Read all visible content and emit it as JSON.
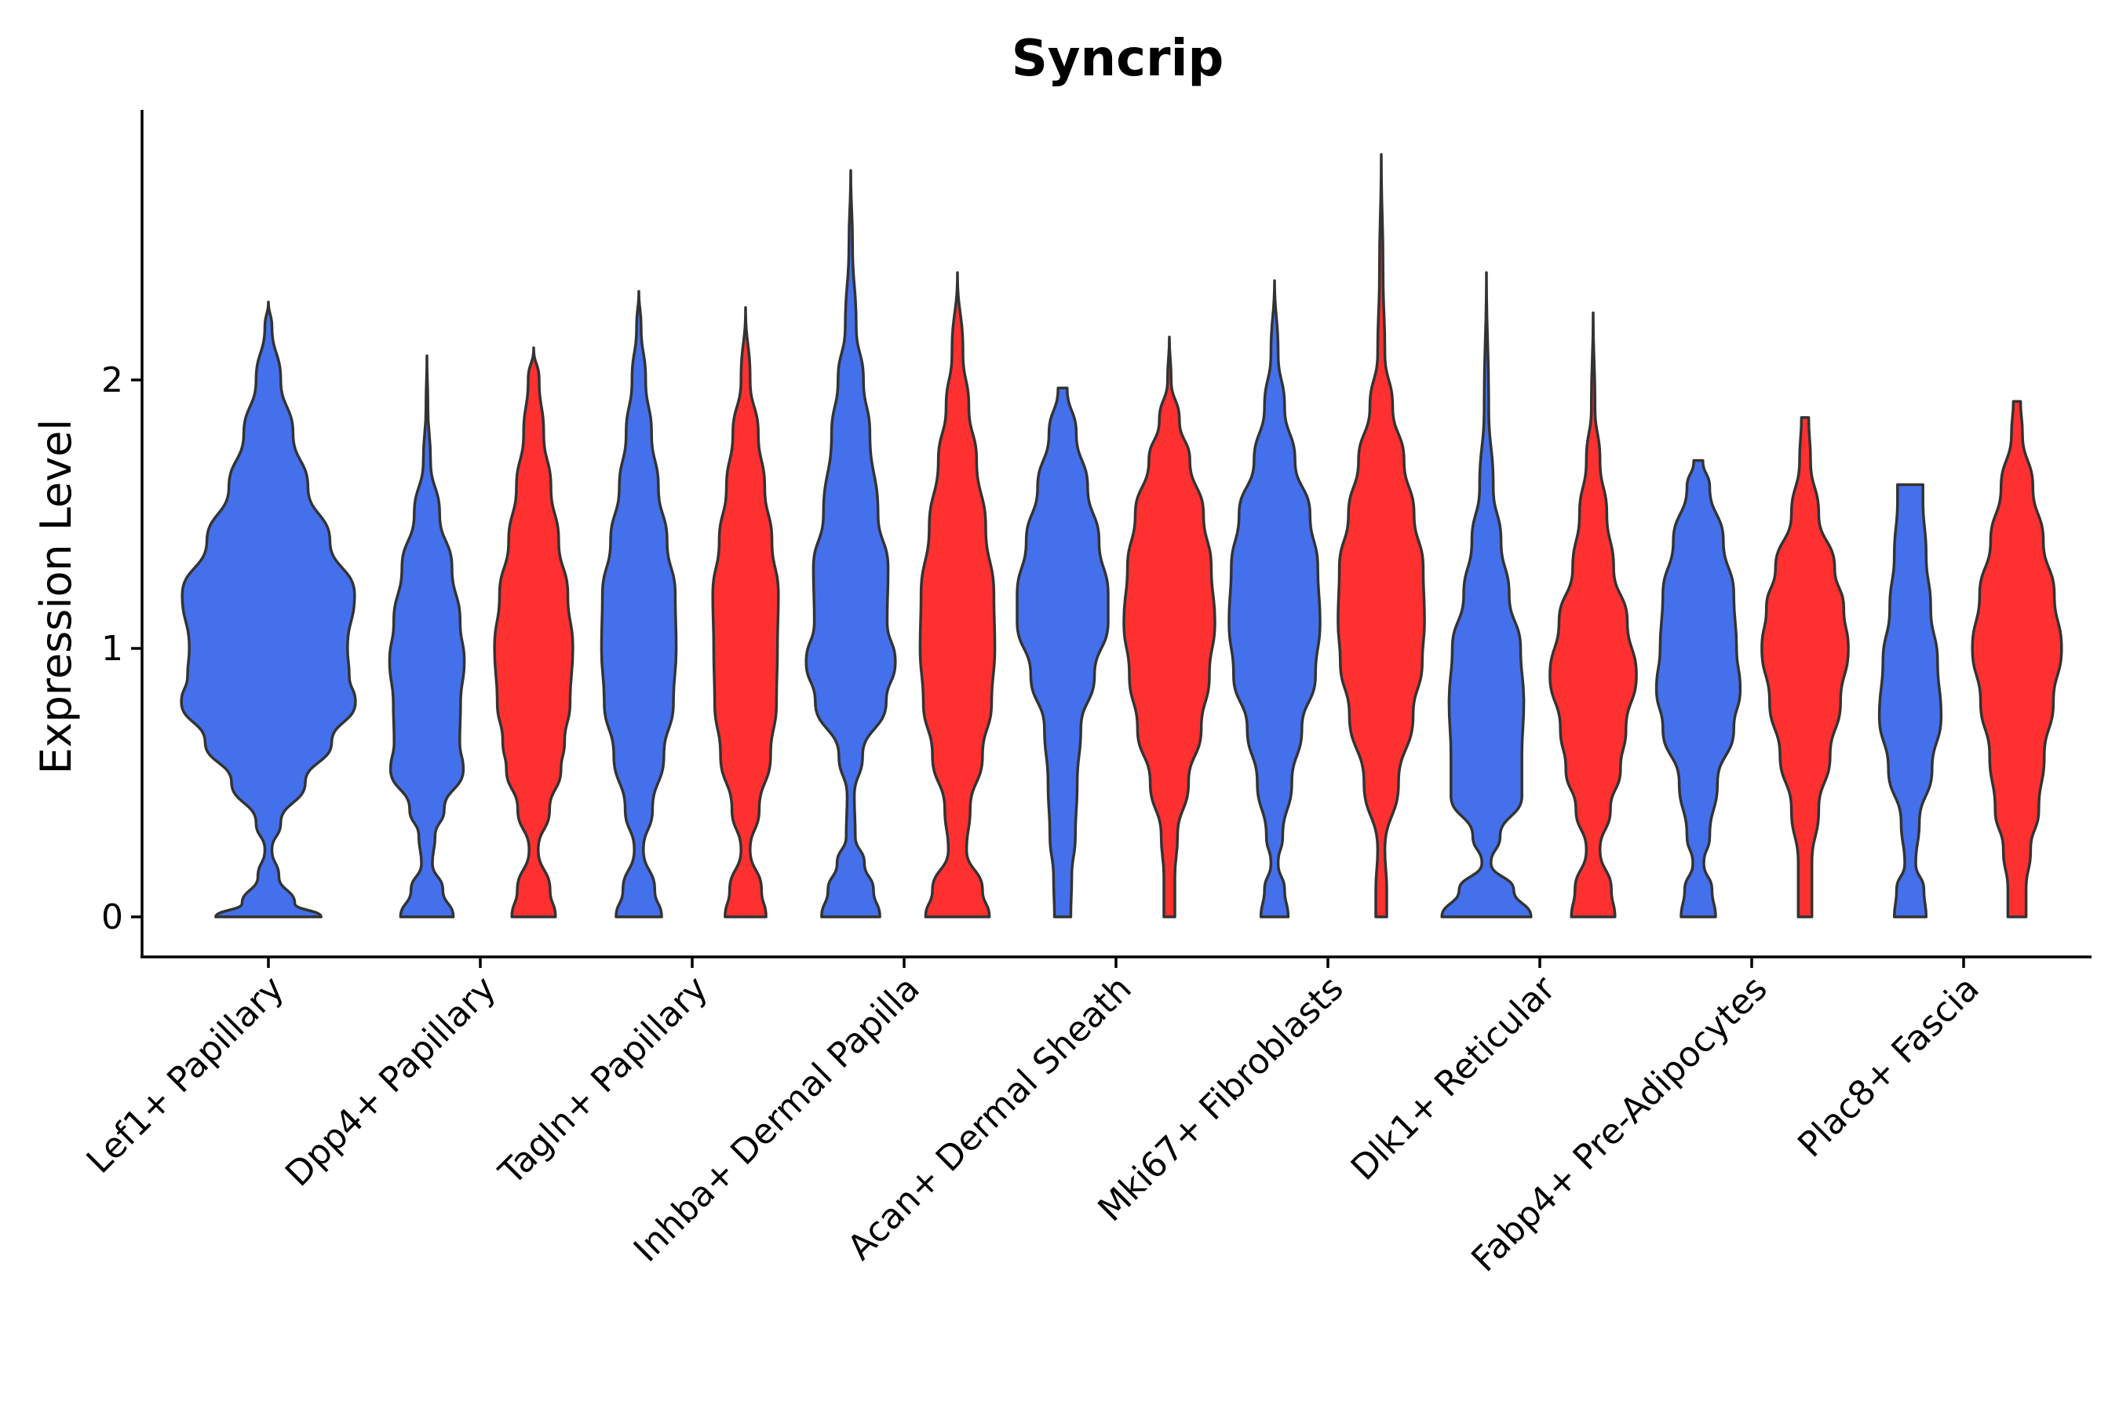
{
  "chart_data": {
    "type": "violin",
    "title": "Syncrip",
    "xlabel": "",
    "ylabel": "Expression Level",
    "ylim": [
      -0.15,
      2.98
    ],
    "yticks": [
      0,
      1,
      2
    ],
    "grid": false,
    "colors": {
      "blue": "#4570EB",
      "red": "#FF3030"
    },
    "categories": [
      "Lef1+ Papillary",
      "Dpp4+ Papillary",
      "Tagln+ Papillary",
      "Inhba+ Dermal Papilla",
      "Acan+ Dermal Sheath",
      "Mki67+ Fibroblasts",
      "Dlk1+ Reticular",
      "Fabp4+ Pre-Adipocytes",
      "Plac8+ Fascia"
    ],
    "series": [
      {
        "color": "blue",
        "violins": [
          {
            "category": "Lef1+ Papillary",
            "profile": [
              [
                0,
                0.6
              ],
              [
                0.05,
                0.3
              ],
              [
                0.15,
                0.12
              ],
              [
                0.25,
                0.04
              ],
              [
                0.35,
                0.14
              ],
              [
                0.5,
                0.42
              ],
              [
                0.65,
                0.72
              ],
              [
                0.8,
                0.99
              ],
              [
                0.9,
                0.92
              ],
              [
                1,
                0.9
              ],
              [
                1.2,
                0.98
              ],
              [
                1.4,
                0.7
              ],
              [
                1.6,
                0.45
              ],
              [
                1.8,
                0.28
              ],
              [
                2,
                0.14
              ],
              [
                2.2,
                0.04
              ],
              [
                2.29,
                0
              ]
            ]
          },
          {
            "category": "Dpp4+ Papillary",
            "profile": [
              [
                0,
                0.58
              ],
              [
                0.1,
                0.35
              ],
              [
                0.2,
                0.12
              ],
              [
                0.3,
                0.18
              ],
              [
                0.4,
                0.38
              ],
              [
                0.55,
                0.8
              ],
              [
                0.65,
                0.72
              ],
              [
                0.8,
                0.74
              ],
              [
                0.95,
                0.82
              ],
              [
                1.1,
                0.73
              ],
              [
                1.3,
                0.55
              ],
              [
                1.5,
                0.28
              ],
              [
                1.7,
                0.08
              ],
              [
                1.9,
                0.02
              ],
              [
                2.09,
                0
              ]
            ]
          },
          {
            "category": "Tagln+ Papillary",
            "profile": [
              [
                0,
                0.5
              ],
              [
                0.1,
                0.35
              ],
              [
                0.25,
                0.1
              ],
              [
                0.4,
                0.3
              ],
              [
                0.6,
                0.55
              ],
              [
                0.8,
                0.76
              ],
              [
                1,
                0.82
              ],
              [
                1.2,
                0.8
              ],
              [
                1.4,
                0.62
              ],
              [
                1.6,
                0.43
              ],
              [
                1.8,
                0.28
              ],
              [
                2,
                0.15
              ],
              [
                2.2,
                0.05
              ],
              [
                2.33,
                0
              ]
            ]
          },
          {
            "category": "Inhba+ Dermal Papilla",
            "profile": [
              [
                0,
                0.64
              ],
              [
                0.1,
                0.5
              ],
              [
                0.2,
                0.3
              ],
              [
                0.3,
                0.1
              ],
              [
                0.45,
                0.08
              ],
              [
                0.6,
                0.26
              ],
              [
                0.8,
                0.78
              ],
              [
                0.95,
                0.98
              ],
              [
                1.1,
                0.8
              ],
              [
                1.3,
                0.82
              ],
              [
                1.5,
                0.6
              ],
              [
                1.8,
                0.42
              ],
              [
                2.0,
                0.28
              ],
              [
                2.2,
                0.12
              ],
              [
                2.5,
                0.04
              ],
              [
                2.78,
                0
              ]
            ]
          },
          {
            "category": "Acan+ Dermal Sheath",
            "profile": [
              [
                0,
                0.18
              ],
              [
                0.15,
                0.2
              ],
              [
                0.3,
                0.28
              ],
              [
                0.5,
                0.32
              ],
              [
                0.7,
                0.4
              ],
              [
                0.9,
                0.7
              ],
              [
                1.1,
                1.0
              ],
              [
                1.2,
                1.0
              ],
              [
                1.4,
                0.8
              ],
              [
                1.6,
                0.55
              ],
              [
                1.8,
                0.3
              ],
              [
                1.97,
                0.1
              ]
            ]
          },
          {
            "category": "Mki67+ Fibroblasts",
            "profile": [
              [
                0,
                0.3
              ],
              [
                0.1,
                0.22
              ],
              [
                0.2,
                0.08
              ],
              [
                0.3,
                0.18
              ],
              [
                0.5,
                0.38
              ],
              [
                0.7,
                0.6
              ],
              [
                0.9,
                0.9
              ],
              [
                1.1,
                1.0
              ],
              [
                1.3,
                0.95
              ],
              [
                1.5,
                0.78
              ],
              [
                1.7,
                0.45
              ],
              [
                1.9,
                0.22
              ],
              [
                2.1,
                0.08
              ],
              [
                2.37,
                0
              ]
            ]
          },
          {
            "category": "Dlk1+ Reticular",
            "profile": [
              [
                0,
                0.98
              ],
              [
                0.1,
                0.6
              ],
              [
                0.2,
                0.1
              ],
              [
                0.3,
                0.3
              ],
              [
                0.45,
                0.78
              ],
              [
                0.6,
                0.78
              ],
              [
                0.8,
                0.82
              ],
              [
                1.0,
                0.75
              ],
              [
                1.2,
                0.5
              ],
              [
                1.4,
                0.32
              ],
              [
                1.6,
                0.15
              ],
              [
                1.9,
                0.05
              ],
              [
                2.4,
                0
              ]
            ]
          },
          {
            "category": "Fabp4+ Pre-Adipocytes",
            "profile": [
              [
                0,
                0.38
              ],
              [
                0.1,
                0.3
              ],
              [
                0.2,
                0.12
              ],
              [
                0.3,
                0.25
              ],
              [
                0.5,
                0.42
              ],
              [
                0.7,
                0.78
              ],
              [
                0.85,
                0.92
              ],
              [
                1.0,
                0.84
              ],
              [
                1.2,
                0.78
              ],
              [
                1.4,
                0.55
              ],
              [
                1.6,
                0.25
              ],
              [
                1.7,
                0.1
              ]
            ]
          },
          {
            "category": "Plac8+ Fascia",
            "profile": [
              [
                0,
                0.35
              ],
              [
                0.1,
                0.3
              ],
              [
                0.2,
                0.12
              ],
              [
                0.35,
                0.2
              ],
              [
                0.55,
                0.48
              ],
              [
                0.75,
                0.68
              ],
              [
                0.95,
                0.6
              ],
              [
                1.15,
                0.45
              ],
              [
                1.35,
                0.35
              ],
              [
                1.55,
                0.28
              ],
              [
                1.61,
                0.28
              ]
            ]
          }
        ]
      },
      {
        "color": "red",
        "violins": [
          {
            "category": "Dpp4+ Papillary",
            "profile": [
              [
                0,
                0.48
              ],
              [
                0.1,
                0.36
              ],
              [
                0.25,
                0.1
              ],
              [
                0.4,
                0.35
              ],
              [
                0.55,
                0.6
              ],
              [
                0.65,
                0.68
              ],
              [
                0.8,
                0.8
              ],
              [
                1,
                0.86
              ],
              [
                1.2,
                0.75
              ],
              [
                1.4,
                0.55
              ],
              [
                1.6,
                0.38
              ],
              [
                1.8,
                0.22
              ],
              [
                2,
                0.12
              ],
              [
                2.12,
                0
              ]
            ]
          },
          {
            "category": "Tagln+ Papillary",
            "profile": [
              [
                0,
                0.45
              ],
              [
                0.1,
                0.35
              ],
              [
                0.25,
                0.1
              ],
              [
                0.4,
                0.3
              ],
              [
                0.6,
                0.55
              ],
              [
                0.8,
                0.68
              ],
              [
                1,
                0.7
              ],
              [
                1.2,
                0.72
              ],
              [
                1.4,
                0.58
              ],
              [
                1.6,
                0.42
              ],
              [
                1.8,
                0.28
              ],
              [
                2,
                0.1
              ],
              [
                2.27,
                0
              ]
            ]
          },
          {
            "category": "Inhba+ Dermal Papilla",
            "profile": [
              [
                0,
                0.7
              ],
              [
                0.1,
                0.55
              ],
              [
                0.25,
                0.2
              ],
              [
                0.4,
                0.28
              ],
              [
                0.6,
                0.55
              ],
              [
                0.8,
                0.75
              ],
              [
                1,
                0.82
              ],
              [
                1.2,
                0.8
              ],
              [
                1.45,
                0.62
              ],
              [
                1.7,
                0.42
              ],
              [
                1.9,
                0.25
              ],
              [
                2.1,
                0.12
              ],
              [
                2.4,
                0
              ]
            ]
          },
          {
            "category": "Acan+ Dermal Sheath",
            "profile": [
              [
                0,
                0.12
              ],
              [
                0.15,
                0.12
              ],
              [
                0.3,
                0.18
              ],
              [
                0.5,
                0.42
              ],
              [
                0.7,
                0.7
              ],
              [
                0.9,
                0.88
              ],
              [
                1.1,
                1.0
              ],
              [
                1.3,
                0.92
              ],
              [
                1.5,
                0.75
              ],
              [
                1.7,
                0.45
              ],
              [
                1.85,
                0.22
              ],
              [
                2.0,
                0.04
              ],
              [
                2.16,
                0
              ]
            ]
          },
          {
            "category": "Mki67+ Fibroblasts",
            "profile": [
              [
                0,
                0.12
              ],
              [
                0.1,
                0.12
              ],
              [
                0.25,
                0.08
              ],
              [
                0.5,
                0.38
              ],
              [
                0.75,
                0.7
              ],
              [
                0.95,
                0.9
              ],
              [
                1.1,
                0.95
              ],
              [
                1.3,
                0.92
              ],
              [
                1.5,
                0.72
              ],
              [
                1.7,
                0.5
              ],
              [
                1.9,
                0.25
              ],
              [
                2.1,
                0.08
              ],
              [
                2.4,
                0.04
              ],
              [
                2.84,
                0
              ]
            ]
          },
          {
            "category": "Dlk1+ Reticular",
            "profile": [
              [
                0,
                0.48
              ],
              [
                0.1,
                0.4
              ],
              [
                0.25,
                0.15
              ],
              [
                0.4,
                0.38
              ],
              [
                0.55,
                0.6
              ],
              [
                0.7,
                0.72
              ],
              [
                0.9,
                0.95
              ],
              [
                1.1,
                0.75
              ],
              [
                1.3,
                0.45
              ],
              [
                1.5,
                0.3
              ],
              [
                1.7,
                0.15
              ],
              [
                1.9,
                0.04
              ],
              [
                2.25,
                0
              ]
            ]
          },
          {
            "category": "Fabp4+ Pre-Adipocytes",
            "profile": [
              [
                0,
                0.15
              ],
              [
                0.2,
                0.15
              ],
              [
                0.4,
                0.3
              ],
              [
                0.6,
                0.55
              ],
              [
                0.8,
                0.78
              ],
              [
                1,
                0.95
              ],
              [
                1.15,
                0.85
              ],
              [
                1.3,
                0.65
              ],
              [
                1.5,
                0.3
              ],
              [
                1.7,
                0.12
              ],
              [
                1.86,
                0.08
              ]
            ]
          },
          {
            "category": "Plac8+ Fascia",
            "profile": [
              [
                0,
                0.2
              ],
              [
                0.1,
                0.2
              ],
              [
                0.25,
                0.3
              ],
              [
                0.4,
                0.48
              ],
              [
                0.6,
                0.6
              ],
              [
                0.8,
                0.8
              ],
              [
                1,
                0.98
              ],
              [
                1.2,
                0.82
              ],
              [
                1.4,
                0.58
              ],
              [
                1.6,
                0.35
              ],
              [
                1.8,
                0.12
              ],
              [
                1.92,
                0.08
              ]
            ]
          }
        ]
      }
    ]
  }
}
